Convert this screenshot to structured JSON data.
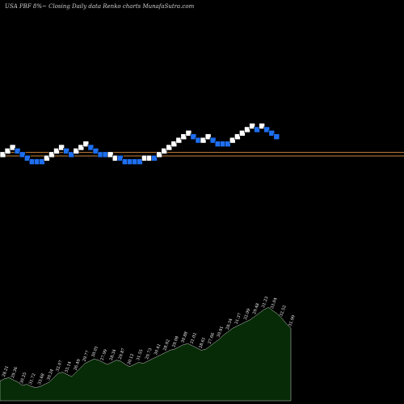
{
  "header": {
    "text": "USA PBF 8%~  Closing Daily data  Renko  charts MunafaSutra.com"
  },
  "chart_data": {
    "type": "renko",
    "colors": {
      "background": "#000000",
      "brick_up": "#ffffff",
      "brick_down": "#1e6ff0",
      "reference_line": "#c8843a",
      "volume_fill": "#062b06",
      "volume_stroke": "#cfcfcf"
    },
    "renko": {
      "value_range": [
        0,
        17
      ],
      "bricks": [
        {
          "dir": "up",
          "level": 9
        },
        {
          "dir": "up",
          "level": 10
        },
        {
          "dir": "up",
          "level": 11
        },
        {
          "dir": "down",
          "level": 10
        },
        {
          "dir": "down",
          "level": 9
        },
        {
          "dir": "down",
          "level": 8
        },
        {
          "dir": "down",
          "level": 7
        },
        {
          "dir": "down",
          "level": 7
        },
        {
          "dir": "down",
          "level": 7
        },
        {
          "dir": "up",
          "level": 8
        },
        {
          "dir": "up",
          "level": 9
        },
        {
          "dir": "up",
          "level": 10
        },
        {
          "dir": "up",
          "level": 11
        },
        {
          "dir": "down",
          "level": 10
        },
        {
          "dir": "down",
          "level": 9
        },
        {
          "dir": "up",
          "level": 10
        },
        {
          "dir": "up",
          "level": 11
        },
        {
          "dir": "up",
          "level": 12
        },
        {
          "dir": "down",
          "level": 11
        },
        {
          "dir": "down",
          "level": 10
        },
        {
          "dir": "down",
          "level": 9
        },
        {
          "dir": "down",
          "level": 9
        },
        {
          "dir": "up",
          "level": 9
        },
        {
          "dir": "up",
          "level": 8
        },
        {
          "dir": "down",
          "level": 8
        },
        {
          "dir": "down",
          "level": 7
        },
        {
          "dir": "down",
          "level": 7
        },
        {
          "dir": "down",
          "level": 7
        },
        {
          "dir": "down",
          "level": 7
        },
        {
          "dir": "up",
          "level": 8
        },
        {
          "dir": "up",
          "level": 8
        },
        {
          "dir": "down",
          "level": 8
        },
        {
          "dir": "up",
          "level": 9
        },
        {
          "dir": "up",
          "level": 10
        },
        {
          "dir": "up",
          "level": 11
        },
        {
          "dir": "up",
          "level": 12
        },
        {
          "dir": "up",
          "level": 13
        },
        {
          "dir": "up",
          "level": 14
        },
        {
          "dir": "up",
          "level": 15
        },
        {
          "dir": "down",
          "level": 14
        },
        {
          "dir": "down",
          "level": 13
        },
        {
          "dir": "up",
          "level": 13
        },
        {
          "dir": "up",
          "level": 14
        },
        {
          "dir": "down",
          "level": 13
        },
        {
          "dir": "down",
          "level": 12
        },
        {
          "dir": "down",
          "level": 12
        },
        {
          "dir": "down",
          "level": 12
        },
        {
          "dir": "up",
          "level": 13
        },
        {
          "dir": "up",
          "level": 14
        },
        {
          "dir": "up",
          "level": 15
        },
        {
          "dir": "up",
          "level": 16
        },
        {
          "dir": "up",
          "level": 17
        },
        {
          "dir": "down",
          "level": 16
        },
        {
          "dir": "up",
          "level": 17
        },
        {
          "dir": "down",
          "level": 16
        },
        {
          "dir": "down",
          "level": 15
        },
        {
          "dir": "down",
          "level": 14
        }
      ],
      "reference_lines": [
        9.6,
        8.6
      ]
    },
    "volume": {
      "values": [
        18,
        20,
        21,
        19,
        17,
        14,
        15,
        13,
        12,
        13,
        15,
        17,
        21,
        25,
        26,
        24,
        22,
        26,
        30,
        34,
        36,
        38,
        37,
        35,
        33,
        35,
        37,
        36,
        33,
        31,
        33,
        35,
        34,
        36,
        38,
        40,
        42,
        44,
        46,
        47,
        49,
        51,
        52,
        50,
        48,
        46,
        47,
        50,
        53,
        56,
        60,
        63,
        66,
        68,
        70,
        72,
        74,
        77,
        80,
        83,
        85,
        82,
        79,
        75,
        70,
        66
      ],
      "range": [
        0,
        100
      ],
      "labels": [
        {
          "i": 1,
          "text": "28.21"
        },
        {
          "i": 3,
          "text": "29.36"
        },
        {
          "i": 5,
          "text": "30.25"
        },
        {
          "i": 7,
          "text": "31.72"
        },
        {
          "i": 9,
          "text": "33.68"
        },
        {
          "i": 11,
          "text": "30.24"
        },
        {
          "i": 13,
          "text": "32.07"
        },
        {
          "i": 15,
          "text": "33.14"
        },
        {
          "i": 17,
          "text": "26.49"
        },
        {
          "i": 19,
          "text": "29.77"
        },
        {
          "i": 21,
          "text": "30.01"
        },
        {
          "i": 23,
          "text": "27.99"
        },
        {
          "i": 25,
          "text": "28.34"
        },
        {
          "i": 27,
          "text": "29.87"
        },
        {
          "i": 29,
          "text": "30.12"
        },
        {
          "i": 31,
          "text": "31.55"
        },
        {
          "i": 33,
          "text": "29.73"
        },
        {
          "i": 35,
          "text": "30.41"
        },
        {
          "i": 37,
          "text": "28.92"
        },
        {
          "i": 39,
          "text": "29.08"
        },
        {
          "i": 41,
          "text": "30.88"
        },
        {
          "i": 43,
          "text": "31.02"
        },
        {
          "i": 45,
          "text": "28.61"
        },
        {
          "i": 47,
          "text": "27.66"
        },
        {
          "i": 49,
          "text": "30.91"
        },
        {
          "i": 51,
          "text": "28.34"
        },
        {
          "i": 53,
          "text": "31.37"
        },
        {
          "i": 55,
          "text": "32.09"
        },
        {
          "i": 57,
          "text": "29.48"
        },
        {
          "i": 59,
          "text": "31.23"
        },
        {
          "i": 61,
          "text": "33.04"
        },
        {
          "i": 63,
          "text": "32.52"
        },
        {
          "i": 65,
          "text": "31.99"
        }
      ]
    }
  }
}
